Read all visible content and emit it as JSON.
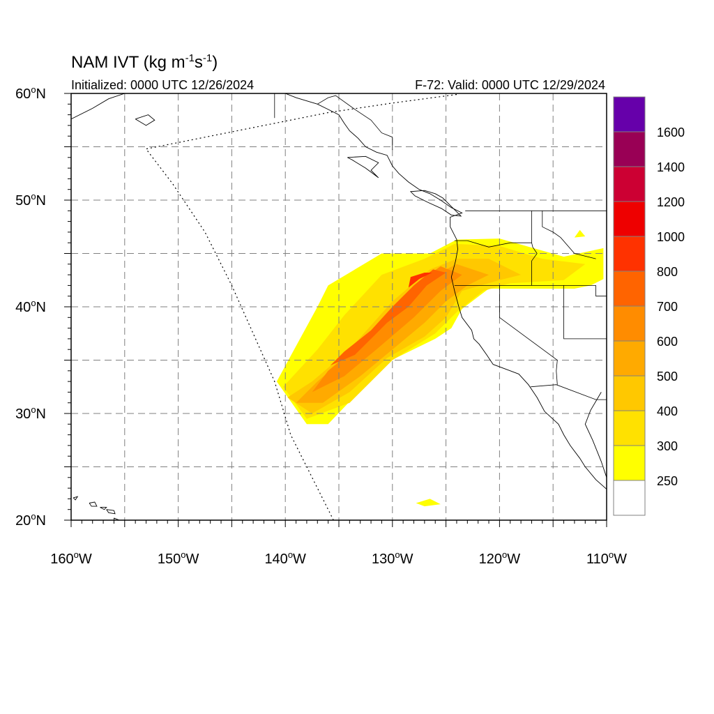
{
  "title": {
    "main": "NAM IVT (kg m",
    "sup1": "-1",
    "mid": "s",
    "sup2": "-1",
    "end": ")"
  },
  "subtitle": {
    "left": "Initialized: 0000 UTC 12/26/2024",
    "right": "F-72: Valid: 0000 UTC 12/29/2024"
  },
  "map": {
    "lon_range": [
      -160,
      -110
    ],
    "lat_range": [
      20,
      60
    ],
    "lat_labels": [
      {
        "lat": 60,
        "num": "60",
        "deg": "o",
        "hem": "N"
      },
      {
        "lat": 50,
        "num": "50",
        "deg": "o",
        "hem": "N"
      },
      {
        "lat": 40,
        "num": "40",
        "deg": "o",
        "hem": "N"
      },
      {
        "lat": 30,
        "num": "30",
        "deg": "o",
        "hem": "N"
      },
      {
        "lat": 20,
        "num": "20",
        "deg": "o",
        "hem": "N"
      }
    ],
    "lon_labels": [
      {
        "lon": -160,
        "num": "160",
        "deg": "o",
        "hem": "W"
      },
      {
        "lon": -150,
        "num": "150",
        "deg": "o",
        "hem": "W"
      },
      {
        "lon": -140,
        "num": "140",
        "deg": "o",
        "hem": "W"
      },
      {
        "lon": -130,
        "num": "130",
        "deg": "o",
        "hem": "W"
      },
      {
        "lon": -120,
        "num": "120",
        "deg": "o",
        "hem": "W"
      },
      {
        "lon": -110,
        "num": "110",
        "deg": "o",
        "hem": "W"
      }
    ],
    "grid_lats": [
      25,
      30,
      35,
      40,
      45,
      50,
      55
    ],
    "grid_lons": [
      -155,
      -150,
      -145,
      -140,
      -135,
      -130,
      -125,
      -120,
      -115
    ]
  },
  "colorbar": {
    "colors": [
      "#ffffff",
      "#ffff00",
      "#ffe100",
      "#ffc800",
      "#ffaa00",
      "#ff8c00",
      "#ff6400",
      "#ff3200",
      "#ee0000",
      "#cc0033",
      "#990055",
      "#6600aa"
    ],
    "labels": [
      "250",
      "300",
      "400",
      "500",
      "600",
      "700",
      "800",
      "1000",
      "1200",
      "1400",
      "1600"
    ]
  },
  "ivt_field": {
    "levels": [
      {
        "value": 250,
        "color": "#ffff00",
        "polygon": [
          [
            -140.8,
            33
          ],
          [
            -138,
            29
          ],
          [
            -136,
            29
          ],
          [
            -130.5,
            34.8
          ],
          [
            -126,
            37
          ],
          [
            -124.5,
            38
          ],
          [
            -123.5,
            39.8
          ],
          [
            -121,
            41.7
          ],
          [
            -116,
            41.7
          ],
          [
            -113,
            41.7
          ],
          [
            -111.5,
            42
          ],
          [
            -110.3,
            42.6
          ],
          [
            -110.3,
            45.5
          ],
          [
            -114,
            44.7
          ],
          [
            -120,
            46.4
          ],
          [
            -124,
            46.3
          ],
          [
            -126.5,
            45
          ],
          [
            -131,
            45
          ],
          [
            -136,
            42
          ],
          [
            -137,
            40
          ],
          [
            -140.8,
            33
          ]
        ]
      },
      {
        "value": 300,
        "color": "#ffe100",
        "polygon": [
          [
            -140.2,
            32.5
          ],
          [
            -138,
            29.5
          ],
          [
            -134,
            31
          ],
          [
            -130,
            35
          ],
          [
            -126,
            37.5
          ],
          [
            -124,
            39.5
          ],
          [
            -121.5,
            41.5
          ],
          [
            -119,
            42.2
          ],
          [
            -114,
            42.5
          ],
          [
            -112,
            44
          ],
          [
            -116,
            44.5
          ],
          [
            -120,
            45.7
          ],
          [
            -124.2,
            45.9
          ],
          [
            -127,
            44.5
          ],
          [
            -131,
            43
          ],
          [
            -134.5,
            39.2
          ],
          [
            -137,
            36
          ],
          [
            -140.2,
            32.5
          ]
        ]
      },
      {
        "value": 400,
        "color": "#ffc800",
        "polygon": [
          [
            -139.8,
            31.5
          ],
          [
            -137.5,
            30
          ],
          [
            -134,
            32
          ],
          [
            -130.5,
            35.2
          ],
          [
            -127,
            37.2
          ],
          [
            -125,
            39
          ],
          [
            -123.5,
            41.5
          ],
          [
            -120,
            42.5
          ],
          [
            -118,
            43
          ],
          [
            -121,
            44.5
          ],
          [
            -124,
            44.5
          ],
          [
            -126.5,
            43.5
          ],
          [
            -130,
            40.5
          ],
          [
            -134,
            36
          ],
          [
            -137.5,
            33
          ],
          [
            -139.8,
            31.5
          ]
        ]
      },
      {
        "value": 500,
        "color": "#ffaa00",
        "polygon": [
          [
            -139,
            31
          ],
          [
            -136.5,
            31
          ],
          [
            -133,
            33.5
          ],
          [
            -130,
            36
          ],
          [
            -127,
            38.5
          ],
          [
            -125,
            40.5
          ],
          [
            -123,
            42
          ],
          [
            -121,
            43
          ],
          [
            -124,
            44
          ],
          [
            -127,
            42.5
          ],
          [
            -130,
            39.5
          ],
          [
            -133.5,
            36
          ],
          [
            -137,
            33
          ],
          [
            -139,
            31
          ]
        ]
      },
      {
        "value": 600,
        "color": "#ff8c00",
        "polygon": [
          [
            -137.5,
            32
          ],
          [
            -134.5,
            33.5
          ],
          [
            -131.5,
            36
          ],
          [
            -128,
            39
          ],
          [
            -125.5,
            41.5
          ],
          [
            -123.5,
            43
          ],
          [
            -125.5,
            43.8
          ],
          [
            -128,
            42
          ],
          [
            -130.5,
            39
          ],
          [
            -133,
            36.5
          ],
          [
            -136,
            34
          ],
          [
            -137.5,
            32
          ]
        ]
      },
      {
        "value": 700,
        "color": "#ff6400",
        "polygon": [
          [
            -135.8,
            34.5
          ],
          [
            -133.5,
            35.5
          ],
          [
            -131.5,
            37.5
          ],
          [
            -130.5,
            38.5
          ],
          [
            -128.5,
            40
          ],
          [
            -126.8,
            42
          ],
          [
            -125,
            43.2
          ],
          [
            -126.2,
            43.5
          ],
          [
            -128,
            42
          ],
          [
            -130,
            40
          ],
          [
            -132,
            37.8
          ],
          [
            -134.5,
            35.8
          ],
          [
            -135.8,
            34.5
          ]
        ]
      },
      {
        "value": 800,
        "color": "#ff3200",
        "polygon": [
          [
            -128.5,
            41.8
          ],
          [
            -127.5,
            42.6
          ],
          [
            -126.3,
            43.2
          ],
          [
            -127,
            43.2
          ],
          [
            -128.3,
            42.8
          ],
          [
            -128.5,
            41.8
          ]
        ]
      }
    ],
    "islands": [
      {
        "value": 250,
        "color": "#ffff00",
        "polygon": [
          [
            -127.8,
            21.6
          ],
          [
            -126.5,
            22
          ],
          [
            -125.5,
            21.5
          ],
          [
            -127,
            21.3
          ],
          [
            -127.8,
            21.6
          ]
        ]
      },
      {
        "value": 250,
        "color": "#ffff00",
        "polygon": [
          [
            -113,
            46.5
          ],
          [
            -112,
            46.6
          ],
          [
            -112.5,
            47.2
          ],
          [
            -113,
            46.5
          ]
        ]
      }
    ]
  },
  "features": {
    "coastline": [
      [
        [
          -160,
          57.6
        ],
        [
          -158,
          58.6
        ],
        [
          -156.5,
          59.5
        ],
        [
          -155,
          60
        ]
      ],
      [
        [
          -140,
          60
        ],
        [
          -139,
          59.6
        ],
        [
          -137,
          59
        ],
        [
          -136,
          58.5
        ],
        [
          -135,
          58
        ],
        [
          -134.5,
          57.2
        ],
        [
          -134,
          56.5
        ],
        [
          -133.2,
          55.8
        ],
        [
          -132.5,
          55
        ],
        [
          -131.5,
          54.5
        ],
        [
          -130.5,
          54.2
        ],
        [
          -130,
          53.2
        ],
        [
          -129.4,
          52.5
        ],
        [
          -128.5,
          51.7
        ],
        [
          -127.5,
          51
        ],
        [
          -126.5,
          50.6
        ],
        [
          -125.5,
          50
        ],
        [
          -124.5,
          49.3
        ],
        [
          -123.5,
          48.8
        ],
        [
          -124.6,
          48.4
        ],
        [
          -124.6,
          47.5
        ],
        [
          -124,
          46.3
        ],
        [
          -123.9,
          45.4
        ],
        [
          -124.1,
          44.3
        ],
        [
          -124.5,
          42.8
        ],
        [
          -124.2,
          41.5
        ],
        [
          -123.8,
          40
        ],
        [
          -123.5,
          39
        ],
        [
          -122.6,
          37.8
        ],
        [
          -122.4,
          37
        ],
        [
          -121.9,
          36.5
        ],
        [
          -121.2,
          35.5
        ],
        [
          -120.6,
          34.6
        ],
        [
          -119,
          34
        ],
        [
          -118.2,
          33.7
        ],
        [
          -117.3,
          32.7
        ],
        [
          -116.5,
          31.5
        ],
        [
          -115.8,
          30.2
        ],
        [
          -114.5,
          29
        ],
        [
          -114,
          28
        ],
        [
          -113.4,
          27
        ],
        [
          -112.5,
          25.8
        ],
        [
          -112,
          25
        ],
        [
          -111,
          23.8
        ],
        [
          -110,
          22.9
        ]
      ],
      [
        [
          -110.5,
          32
        ],
        [
          -111.5,
          30.3
        ],
        [
          -112,
          29
        ],
        [
          -111.3,
          27.5
        ],
        [
          -110.5,
          25.5
        ],
        [
          -110,
          24
        ]
      ],
      [
        [
          -134.2,
          54
        ],
        [
          -132.5,
          54.1
        ],
        [
          -131.3,
          53.5
        ],
        [
          -132,
          52.8
        ],
        [
          -131.3,
          52.1
        ],
        [
          -132.5,
          53
        ],
        [
          -133.8,
          53.8
        ],
        [
          -134.2,
          54
        ]
      ],
      [
        [
          -126,
          50.6
        ],
        [
          -125.3,
          50.2
        ],
        [
          -124.6,
          49.5
        ],
        [
          -123.6,
          48.5
        ],
        [
          -124.5,
          48.6
        ],
        [
          -125.4,
          49.2
        ],
        [
          -126.7,
          49.8
        ],
        [
          -127.9,
          50.4
        ],
        [
          -128.3,
          50.8
        ],
        [
          -127,
          50.9
        ],
        [
          -126,
          50.6
        ]
      ],
      [
        [
          -159.8,
          22.1
        ],
        [
          -159.4,
          22.2
        ],
        [
          -159.6,
          21.9
        ],
        [
          -159.8,
          22.1
        ]
      ],
      [
        [
          -158.3,
          21.6
        ],
        [
          -157.8,
          21.7
        ],
        [
          -157.6,
          21.3
        ],
        [
          -158.1,
          21.3
        ],
        [
          -158.3,
          21.6
        ]
      ],
      [
        [
          -157.3,
          21.2
        ],
        [
          -156.7,
          21.2
        ],
        [
          -156.9,
          21.0
        ],
        [
          -157.3,
          21.2
        ]
      ],
      [
        [
          -156.7,
          21
        ],
        [
          -156,
          20.9
        ],
        [
          -155.9,
          20.6
        ],
        [
          -156.5,
          20.7
        ],
        [
          -156.7,
          21
        ]
      ],
      [
        [
          -156,
          20.2
        ],
        [
          -155,
          19.8
        ],
        [
          -154.8,
          19.5
        ],
        [
          -155.6,
          19
        ],
        [
          -155.9,
          19.6
        ],
        [
          -156,
          20.2
        ]
      ],
      [
        [
          -154,
          57.6
        ],
        [
          -152.8,
          58
        ],
        [
          -152.2,
          57.5
        ],
        [
          -153,
          57
        ],
        [
          -154,
          57.6
        ]
      ]
    ],
    "borders": [
      [
        [
          -141,
          60
        ],
        [
          -141,
          57.7
        ]
      ],
      [
        [
          -137,
          59
        ],
        [
          -136,
          59.6
        ],
        [
          -135.3,
          59.8
        ],
        [
          -133.5,
          58.5
        ],
        [
          -132,
          57.5
        ],
        [
          -131,
          56.3
        ],
        [
          -130,
          55.9
        ],
        [
          -130,
          54.7
        ]
      ],
      [
        [
          -123.2,
          49
        ],
        [
          -113,
          49
        ],
        [
          -110,
          49
        ]
      ],
      [
        [
          -124.2,
          46.2
        ],
        [
          -123,
          46.2
        ],
        [
          -121,
          45.6
        ],
        [
          -119,
          46
        ],
        [
          -117,
          46
        ],
        [
          -116.9,
          45.6
        ],
        [
          -116.5,
          45
        ],
        [
          -117,
          44.3
        ],
        [
          -117,
          42
        ]
      ],
      [
        [
          -124.2,
          42
        ],
        [
          -120,
          42
        ],
        [
          -117,
          42
        ],
        [
          -114,
          42
        ],
        [
          -111,
          42
        ]
      ],
      [
        [
          -120,
          42
        ],
        [
          -120,
          39
        ],
        [
          -114.6,
          35
        ],
        [
          -114.7,
          34
        ],
        [
          -114.6,
          32.7
        ]
      ],
      [
        [
          -117.1,
          32.5
        ],
        [
          -114.7,
          32.7
        ],
        [
          -111,
          31.3
        ],
        [
          -110,
          31.3
        ]
      ],
      [
        [
          -117,
          49
        ],
        [
          -117,
          46
        ]
      ],
      [
        [
          -116,
          49
        ],
        [
          -116,
          47.5
        ],
        [
          -115,
          47
        ],
        [
          -114.3,
          46.5
        ],
        [
          -113,
          45
        ],
        [
          -111,
          44.5
        ]
      ],
      [
        [
          -114,
          42
        ],
        [
          -114,
          37
        ],
        [
          -110,
          37
        ]
      ],
      [
        [
          -111,
          42
        ],
        [
          -111,
          41
        ],
        [
          -110,
          41
        ]
      ]
    ],
    "dotted_boundary": [
      [
        [
          -135.5,
          20
        ],
        [
          -137.5,
          24
        ],
        [
          -139.5,
          28
        ],
        [
          -141,
          33
        ],
        [
          -143,
          37.5
        ],
        [
          -145,
          42
        ],
        [
          -147.5,
          47
        ],
        [
          -150.5,
          51.5
        ],
        [
          -153,
          54.8
        ],
        [
          -148,
          55.8
        ],
        [
          -142,
          57
        ],
        [
          -136,
          58.2
        ],
        [
          -130,
          59.1
        ],
        [
          -124,
          59.9
        ]
      ]
    ]
  }
}
